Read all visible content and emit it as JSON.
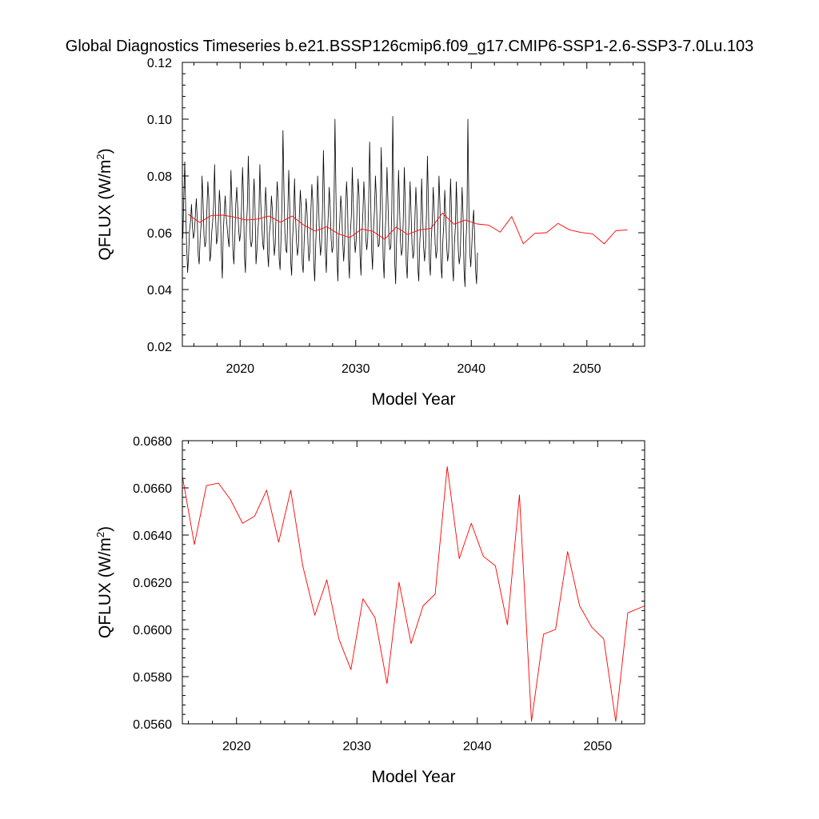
{
  "figure_title": "Global Diagnostics Timeseries b.e21.BSSP126cmip6.f09_g17.CMIP6-SSP1-2.6-SSP3-7.0Lu.103",
  "colors": {
    "monthly": "#000000",
    "annual": "#ff0000",
    "axis": "#000000"
  },
  "chart_data": [
    {
      "type": "line",
      "xlabel": "Model Year",
      "ylabel_main": "QFLUX (W/m",
      "ylabel_sup": "2",
      "ylabel_close": ")",
      "xlim": [
        2015,
        2055
      ],
      "ylim": [
        0.02,
        0.12
      ],
      "xticks": [
        2020,
        2030,
        2040,
        2050
      ],
      "yticks": [
        0.02,
        0.04,
        0.06,
        0.08,
        0.1,
        0.12
      ],
      "ytick_labels": [
        "0.02",
        "0.04",
        "0.06",
        "0.08",
        "0.10",
        "0.12"
      ],
      "xtick_labels": [
        "2020",
        "2030",
        "2040",
        "2050"
      ],
      "grid": false,
      "series": [
        {
          "style": "monthly",
          "x_start": 2015.04,
          "x_step": 0.08333,
          "values": [
            0.058,
            0.072,
            0.085,
            0.068,
            0.055,
            0.046,
            0.052,
            0.061,
            0.064,
            0.07,
            0.062,
            0.058,
            0.06,
            0.066,
            0.072,
            0.065,
            0.052,
            0.049,
            0.058,
            0.063,
            0.08,
            0.071,
            0.059,
            0.055,
            0.057,
            0.068,
            0.078,
            0.072,
            0.05,
            0.052,
            0.06,
            0.064,
            0.07,
            0.084,
            0.066,
            0.056,
            0.058,
            0.065,
            0.075,
            0.069,
            0.053,
            0.044,
            0.06,
            0.067,
            0.073,
            0.066,
            0.062,
            0.058,
            0.055,
            0.067,
            0.082,
            0.07,
            0.054,
            0.049,
            0.058,
            0.07,
            0.076,
            0.069,
            0.061,
            0.057,
            0.06,
            0.069,
            0.083,
            0.073,
            0.052,
            0.046,
            0.062,
            0.069,
            0.087,
            0.072,
            0.058,
            0.055,
            0.057,
            0.071,
            0.079,
            0.068,
            0.049,
            0.054,
            0.061,
            0.066,
            0.084,
            0.07,
            0.063,
            0.056,
            0.054,
            0.066,
            0.076,
            0.069,
            0.053,
            0.048,
            0.06,
            0.064,
            0.073,
            0.068,
            0.059,
            0.052,
            0.056,
            0.069,
            0.078,
            0.072,
            0.051,
            0.047,
            0.058,
            0.071,
            0.096,
            0.075,
            0.06,
            0.054,
            0.053,
            0.067,
            0.082,
            0.07,
            0.05,
            0.045,
            0.058,
            0.065,
            0.079,
            0.066,
            0.057,
            0.052,
            0.055,
            0.066,
            0.075,
            0.069,
            0.049,
            0.046,
            0.057,
            0.064,
            0.072,
            0.067,
            0.056,
            0.05,
            0.054,
            0.068,
            0.077,
            0.071,
            0.049,
            0.043,
            0.056,
            0.065,
            0.08,
            0.07,
            0.058,
            0.052,
            0.056,
            0.068,
            0.089,
            0.072,
            0.053,
            0.046,
            0.059,
            0.066,
            0.076,
            0.069,
            0.058,
            0.053,
            0.055,
            0.07,
            0.1,
            0.074,
            0.052,
            0.043,
            0.058,
            0.064,
            0.073,
            0.068,
            0.057,
            0.05,
            0.056,
            0.068,
            0.078,
            0.071,
            0.051,
            0.044,
            0.06,
            0.066,
            0.083,
            0.07,
            0.059,
            0.053,
            0.057,
            0.069,
            0.079,
            0.073,
            0.052,
            0.045,
            0.059,
            0.067,
            0.078,
            0.07,
            0.058,
            0.054,
            0.058,
            0.071,
            0.092,
            0.074,
            0.054,
            0.047,
            0.061,
            0.068,
            0.08,
            0.072,
            0.059,
            0.055,
            0.056,
            0.069,
            0.09,
            0.073,
            0.051,
            0.044,
            0.059,
            0.067,
            0.083,
            0.071,
            0.058,
            0.054,
            0.055,
            0.068,
            0.101,
            0.074,
            0.05,
            0.042,
            0.058,
            0.066,
            0.082,
            0.07,
            0.057,
            0.052,
            0.054,
            0.066,
            0.083,
            0.07,
            0.049,
            0.044,
            0.057,
            0.065,
            0.078,
            0.067,
            0.056,
            0.051,
            0.053,
            0.065,
            0.076,
            0.068,
            0.048,
            0.043,
            0.056,
            0.063,
            0.079,
            0.066,
            0.055,
            0.05,
            0.055,
            0.067,
            0.087,
            0.071,
            0.05,
            0.045,
            0.058,
            0.064,
            0.076,
            0.068,
            0.056,
            0.051,
            0.054,
            0.066,
            0.08,
            0.07,
            0.049,
            0.044,
            0.057,
            0.063,
            0.075,
            0.066,
            0.055,
            0.05,
            0.053,
            0.065,
            0.079,
            0.068,
            0.048,
            0.043,
            0.056,
            0.062,
            0.078,
            0.066,
            0.054,
            0.049,
            0.052,
            0.064,
            0.076,
            0.066,
            0.047,
            0.041,
            0.057,
            0.064,
            0.1,
            0.07,
            0.053,
            0.048,
            0.055,
            0.063,
            0.068,
            0.059,
            0.047,
            0.042,
            0.053
          ]
        },
        {
          "style": "annual",
          "x": [
            2015.5,
            2016.5,
            2017.5,
            2018.5,
            2019.5,
            2020.5,
            2021.5,
            2022.5,
            2023.5,
            2024.5,
            2025.5,
            2026.5,
            2027.5,
            2028.5,
            2029.5,
            2030.5,
            2031.5,
            2032.5,
            2033.5,
            2034.5,
            2035.5,
            2036.5,
            2037.5,
            2038.5,
            2039.5,
            2040.5,
            2041.5,
            2042.5,
            2043.5,
            2044.5,
            2045.5,
            2046.5,
            2047.5,
            2048.5,
            2049.5,
            2050.5,
            2051.5,
            2052.5,
            2053.5
          ],
          "values": [
            0.0665,
            0.0636,
            0.0661,
            0.0662,
            0.0655,
            0.0645,
            0.0648,
            0.0659,
            0.0637,
            0.0659,
            0.0627,
            0.0606,
            0.0621,
            0.0596,
            0.0583,
            0.0613,
            0.0605,
            0.0577,
            0.062,
            0.0594,
            0.061,
            0.0615,
            0.0669,
            0.063,
            0.0645,
            0.0631,
            0.0627,
            0.0602,
            0.0657,
            0.0561,
            0.0598,
            0.06,
            0.0633,
            0.061,
            0.0601,
            0.0596,
            0.0561,
            0.0607,
            0.061
          ]
        }
      ]
    },
    {
      "type": "line",
      "xlabel": "Model Year",
      "ylabel_main": "QFLUX (W/m",
      "ylabel_sup": "2",
      "ylabel_close": ")",
      "xlim": [
        2015.5,
        2053.9
      ],
      "ylim": [
        0.056,
        0.068
      ],
      "xticks": [
        2020,
        2030,
        2040,
        2050
      ],
      "xtick_labels": [
        "2020",
        "2030",
        "2040",
        "2050"
      ],
      "yticks": [
        0.056,
        0.058,
        0.06,
        0.062,
        0.064,
        0.066,
        0.068
      ],
      "ytick_labels": [
        "0.0560",
        "0.0580",
        "0.0600",
        "0.0620",
        "0.0640",
        "0.0660",
        "0.0680"
      ],
      "grid": false,
      "series": [
        {
          "style": "annual",
          "x": [
            2015.5,
            2016.5,
            2017.5,
            2018.5,
            2019.5,
            2020.5,
            2021.5,
            2022.5,
            2023.5,
            2024.5,
            2025.5,
            2026.5,
            2027.5,
            2028.5,
            2029.5,
            2030.5,
            2031.5,
            2032.5,
            2033.5,
            2034.5,
            2035.5,
            2036.5,
            2037.5,
            2038.5,
            2039.5,
            2040.5,
            2041.5,
            2042.5,
            2043.5,
            2044.5,
            2045.5,
            2046.5,
            2047.5,
            2048.5,
            2049.5,
            2050.5,
            2051.5,
            2052.5,
            2053.9
          ],
          "values": [
            0.0665,
            0.0636,
            0.0661,
            0.0662,
            0.0655,
            0.0645,
            0.0648,
            0.0659,
            0.0637,
            0.0659,
            0.0627,
            0.0606,
            0.0621,
            0.0596,
            0.0583,
            0.0613,
            0.0605,
            0.0577,
            0.062,
            0.0594,
            0.061,
            0.0615,
            0.0669,
            0.063,
            0.0645,
            0.0631,
            0.0627,
            0.0602,
            0.0657,
            0.0561,
            0.0598,
            0.06,
            0.0633,
            0.061,
            0.0601,
            0.0596,
            0.0561,
            0.0607,
            0.061
          ]
        }
      ]
    }
  ]
}
